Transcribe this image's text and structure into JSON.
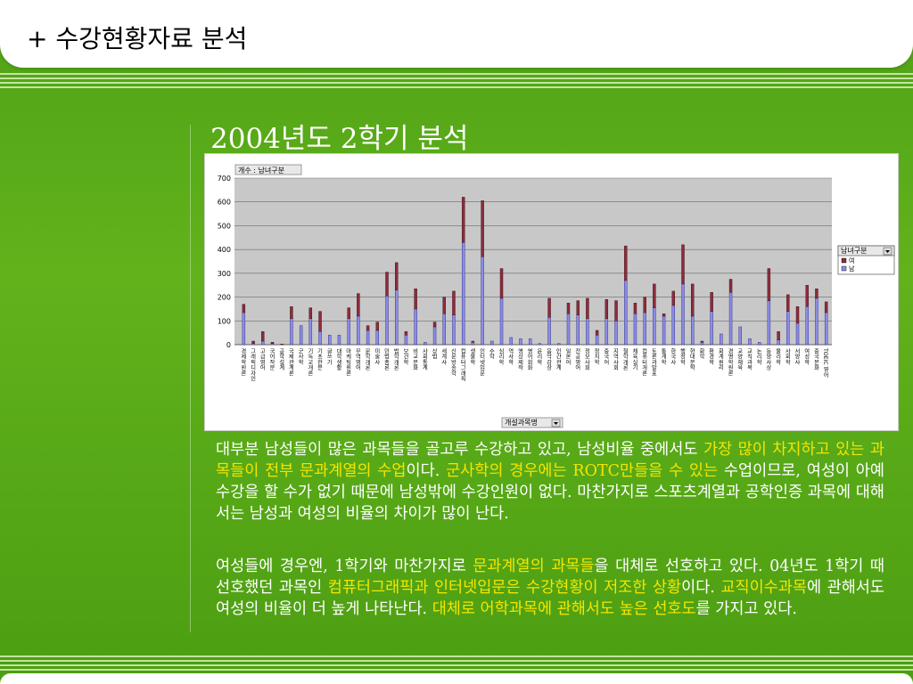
{
  "header": {
    "title": "+ 수강현황자료 분석"
  },
  "slide": {
    "title": "2004년도 2학기 분석"
  },
  "chart_data": {
    "type": "bar",
    "stacked": true,
    "title": "개수 : 남녀구분",
    "legend_title": "남녀구분",
    "legend_position": "right",
    "xlabel_button": "개설과목명",
    "ylim": [
      0,
      700
    ],
    "yticks": [
      0,
      100,
      200,
      300,
      400,
      500,
      600,
      700
    ],
    "grid": true,
    "colors": {
      "남": "#8c8ce6",
      "여": "#8b2c3c"
    },
    "series": [
      {
        "name": "남",
        "values": [
          135,
          5,
          15,
          5,
          0,
          110,
          80,
          110,
          55,
          40,
          40,
          110,
          120,
          60,
          60,
          205,
          230,
          40,
          150,
          10,
          75,
          130,
          125,
          430,
          10,
          370,
          15,
          195,
          30,
          25,
          25,
          5,
          115,
          5,
          130,
          125,
          110,
          40,
          110,
          100,
          270,
          130,
          135,
          155,
          120,
          165,
          255,
          120,
          10,
          140,
          45,
          220,
          75,
          25,
          10,
          185,
          20,
          140,
          90,
          160,
          195,
          135
        ]
      },
      {
        "name": "여",
        "values": [
          35,
          10,
          40,
          5,
          3,
          50,
          0,
          45,
          85,
          0,
          0,
          45,
          95,
          20,
          35,
          100,
          115,
          15,
          85,
          0,
          20,
          70,
          100,
          190,
          5,
          235,
          0,
          125,
          0,
          0,
          0,
          0,
          80,
          0,
          45,
          60,
          85,
          20,
          80,
          85,
          145,
          45,
          65,
          100,
          10,
          60,
          165,
          135,
          5,
          80,
          0,
          55,
          0,
          0,
          0,
          135,
          35,
          70,
          70,
          90,
          40,
          45
        ]
      }
    ],
    "categories": [
      "경제학원론",
      "그래픽디자인",
      "고급영어",
      "국어작문",
      "공학설계",
      "국제관계론",
      "군사학",
      "기독교개론",
      "기초한문",
      "글쓰기",
      "대학생활",
      "마케팅원론",
      "무역영어",
      "문학개론",
      "미술사",
      "민법총론",
      "법학개론",
      "보건학",
      "비교문화",
      "사회통계",
      "상법",
      "세계사",
      "신문방송학",
      "컴퓨터그래픽",
      "생물학",
      "인터넷입문",
      "수학",
      "심리학",
      "역사학",
      "영상제작",
      "영어회화",
      "윤리학",
      "음악감상",
      "인간관계",
      "일본어",
      "전공영어",
      "정보사회",
      "정치학",
      "중국어",
      "지역사회",
      "철학개론",
      "체육실기",
      "컴퓨터개론",
      "토론과발표",
      "통계학",
      "한국사",
      "행정학",
      "현대문학",
      "화학",
      "환경학",
      "회계원리",
      "경영학원론",
      "교양체육",
      "교직과목",
      "논리학",
      "동양사상",
      "물리학",
      "사회학",
      "서양사",
      "여성학",
      "중국문화",
      "TOEIC 영어"
    ]
  },
  "paragraph1": {
    "s1": "대부분 남성들이 많은 과목들을 골고루 수강하고 있고, 남성비율 중에서도 ",
    "h1": "가장 많이 차지하고 있는 과목들이 전부 문과계열의 수업",
    "s2": "이다. ",
    "h2": "군사학의 경우에는 ROTC만들을 수 있는",
    "s3": " 수업이므로, 여성이 아예 수강을 할 수가 없기 때문에 남성밖에 수강인원이 없다. 마찬가지로 스포츠계열과 공학인증 과목에 대해서는 남성과 여성의 비율의 차이가 많이 난다."
  },
  "paragraph2": {
    "s1": "여성들에 경우엔, 1학기와 마찬가지로 ",
    "h1": "문과계열의 과목들",
    "s2": "을 대체로 선호하고 있다. 04년도 1학기 때 선호했던 과목인 ",
    "h2": "컴퓨터그래픽과 인터넷입문은 수강현황이 저조한 상황",
    "s3": "이다. ",
    "h3": "교직이수과목",
    "s4": "에 관해서도 여성의 비율이 더 높게 나타난다. ",
    "h4": "대체로 어학과목에 관해서도 높은 선호도",
    "s5": "를 가지고 있다."
  }
}
